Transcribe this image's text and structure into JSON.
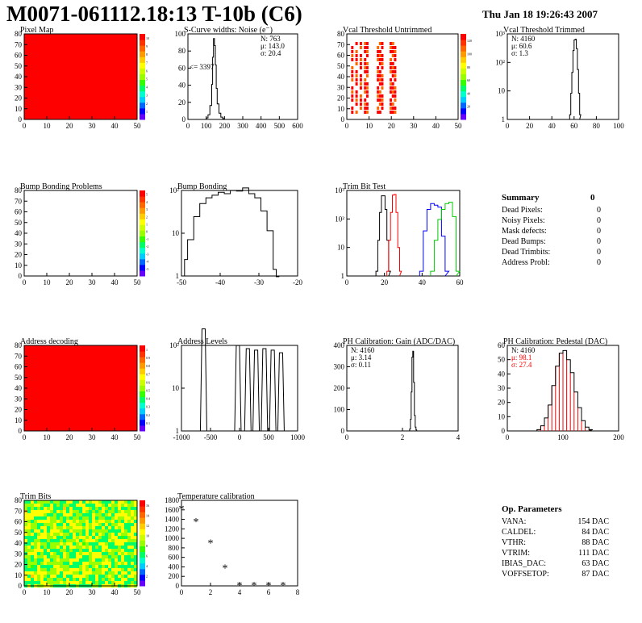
{
  "header": {
    "title": "M0071-061112.18:13 T-10b (C6)",
    "timestamp": "Thu Jan 18 19:26:43 2007"
  },
  "chart_data": [
    {
      "id": "pixel-map",
      "type": "heatmap",
      "title": "Pixel Map",
      "x_ticks": [
        "0",
        "10",
        "20",
        "30",
        "40",
        "50"
      ],
      "y_ticks": [
        "0",
        "10",
        "20",
        "30",
        "40",
        "50",
        "60",
        "70",
        "80"
      ],
      "fill": "#ff0000",
      "palette_ticks": [
        "1",
        "2",
        "3",
        "4",
        "5",
        "6",
        "7",
        "8",
        "9",
        "10"
      ]
    },
    {
      "id": "scurve-noise",
      "type": "line",
      "title": "S-Curve widths: Noise (e⁻)",
      "x_ticks": [
        "0",
        "100",
        "200",
        "300",
        "400",
        "500",
        "600"
      ],
      "y_ticks": [
        "0",
        "20",
        "40",
        "60",
        "80",
        "100"
      ],
      "xlim": [
        0,
        600
      ],
      "ylim": [
        0,
        110
      ],
      "stats": [
        "N:  763",
        "μ:  143.0",
        "σ:  20.4"
      ],
      "annotation": "<= 3397",
      "x": [
        90,
        100,
        110,
        120,
        130,
        135,
        140,
        145,
        150,
        155,
        160,
        170,
        180,
        190,
        200
      ],
      "y": [
        0,
        2,
        6,
        18,
        45,
        80,
        104,
        95,
        70,
        40,
        20,
        8,
        3,
        1,
        0
      ]
    },
    {
      "id": "vcal-untrimmed",
      "type": "heatmap",
      "title": "Vcal Threshold Untrimmed",
      "x_ticks": [
        "0",
        "10",
        "20",
        "30",
        "40",
        "50"
      ],
      "y_ticks": [
        "0",
        "10",
        "20",
        "30",
        "40",
        "50",
        "60",
        "70",
        "80"
      ],
      "palette_ticks": [
        "20",
        "40",
        "60",
        "80",
        "100",
        "120"
      ],
      "columns": [
        2,
        4,
        6,
        8,
        9,
        14,
        15,
        16,
        20,
        21,
        22
      ]
    },
    {
      "id": "vcal-trimmed",
      "type": "line",
      "title": "Vcal Threshold Trimmed",
      "x_ticks": [
        "0",
        "20",
        "40",
        "60",
        "80",
        "100"
      ],
      "y_ticks": [
        "1",
        "10",
        "10²",
        "10³"
      ],
      "xlim": [
        0,
        100
      ],
      "log_y": true,
      "stats": [
        "N:  4160",
        "μ:  60.6",
        "σ:   1.3"
      ],
      "x": [
        56,
        57,
        58,
        59,
        60,
        61,
        62,
        63,
        64,
        65
      ],
      "y": [
        1,
        8,
        60,
        500,
        1400,
        1500,
        600,
        80,
        8,
        1
      ]
    },
    {
      "id": "bump-bonding-problems",
      "type": "heatmap",
      "title": "Bump Bonding Problems",
      "x_ticks": [
        "0",
        "10",
        "20",
        "30",
        "40",
        "50"
      ],
      "y_ticks": [
        "0",
        "10",
        "20",
        "30",
        "40",
        "50",
        "60",
        "70",
        "80"
      ],
      "palette_ticks": [
        "-5",
        "-4",
        "-3",
        "-2",
        "-1",
        "0",
        "1",
        "2",
        "3",
        "4",
        "5"
      ]
    },
    {
      "id": "bump-bonding",
      "type": "line",
      "title": "Bump Bonding",
      "x_ticks": [
        "-50",
        "-40",
        "-30",
        "-20"
      ],
      "y_ticks": [
        "1",
        "10",
        "10²"
      ],
      "xlim": [
        -50,
        -12
      ],
      "log_y": true,
      "x": [
        -49,
        -48,
        -46,
        -44,
        -42,
        -40,
        -38,
        -36,
        -34,
        -32,
        -30,
        -28,
        -26,
        -24,
        -22,
        -20,
        -19
      ],
      "y": [
        2,
        8,
        40,
        100,
        150,
        180,
        220,
        200,
        250,
        240,
        300,
        200,
        150,
        60,
        15,
        1,
        0.6
      ]
    },
    {
      "id": "trim-bit-test",
      "type": "line",
      "title": "Trim Bit Test",
      "x_ticks": [
        "0",
        "20",
        "40",
        "60"
      ],
      "y_ticks": [
        "1",
        "10",
        "10²",
        "10³"
      ],
      "xlim": [
        0,
        62
      ],
      "log_y": true,
      "series": [
        {
          "color": "#000000",
          "x": [
            16,
            17,
            18,
            19,
            20,
            21,
            22,
            23
          ],
          "y": [
            1,
            20,
            300,
            1500,
            1500,
            400,
            20,
            1
          ]
        },
        {
          "color": "#ff0000",
          "x": [
            22,
            23,
            24,
            25,
            26,
            27,
            28,
            29
          ],
          "y": [
            1,
            20,
            300,
            1600,
            1700,
            300,
            10,
            1
          ]
        },
        {
          "color": "#0000ff",
          "x": [
            40,
            42,
            44,
            46,
            48,
            50,
            52,
            54
          ],
          "y": [
            1,
            50,
            400,
            700,
            600,
            500,
            30,
            1
          ]
        },
        {
          "color": "#00cc00",
          "x": [
            46,
            48,
            50,
            52,
            54,
            56,
            58,
            60
          ],
          "y": [
            1,
            20,
            150,
            400,
            700,
            800,
            200,
            1
          ]
        }
      ]
    },
    {
      "id": "address-decoding",
      "type": "heatmap",
      "title": "Address decoding",
      "x_ticks": [
        "0",
        "10",
        "20",
        "30",
        "40",
        "50"
      ],
      "y_ticks": [
        "0",
        "10",
        "20",
        "30",
        "40",
        "50",
        "60",
        "70",
        "80"
      ],
      "fill": "#ff0000",
      "palette_ticks": [
        "0.1",
        "0.2",
        "0.3",
        "0.4",
        "0.5",
        "0.6",
        "0.7",
        "0.8",
        "0.9",
        "1"
      ]
    },
    {
      "id": "address-levels",
      "type": "line",
      "title": "Address Levels",
      "x_ticks": [
        "-1000",
        "-500",
        "0",
        "500",
        "1000"
      ],
      "y_ticks": [
        "1",
        "10",
        "10²"
      ],
      "xlim": [
        -1100,
        1000
      ],
      "log_y": true,
      "peaks": [
        -700,
        -80,
        100,
        250,
        400,
        550,
        700
      ],
      "peak_heights": [
        800,
        250,
        200,
        180,
        200,
        180,
        150
      ]
    },
    {
      "id": "ph-gain",
      "type": "line",
      "title": "PH Calibration: Gain (ADC/DAC)",
      "x_ticks": [
        "0",
        "2",
        "4"
      ],
      "y_ticks": [
        "0",
        "100",
        "200",
        "300",
        "400"
      ],
      "xlim": [
        -1,
        6
      ],
      "ylim": [
        0,
        440
      ],
      "stats": [
        "N:  4160",
        "μ:  3.14",
        "σ:  0.11"
      ],
      "x": [
        2.9,
        2.95,
        3.0,
        3.05,
        3.1,
        3.15,
        3.2,
        3.25,
        3.3,
        3.35,
        3.4
      ],
      "y": [
        0,
        10,
        60,
        200,
        380,
        410,
        250,
        80,
        20,
        5,
        0
      ]
    },
    {
      "id": "ph-pedestal",
      "type": "line",
      "title": "PH Calibration: Pedestal (DAC)",
      "x_ticks": [
        "0",
        "100",
        "200"
      ],
      "y_ticks": [
        "0",
        "10",
        "20",
        "30",
        "40",
        "50",
        "60"
      ],
      "xlim": [
        -50,
        250
      ],
      "ylim": [
        0,
        66
      ],
      "stats": [
        "N:  4160",
        "μ:  98.1",
        "σ:  27.4"
      ],
      "stats_colors": [
        "#000000",
        "#ff0000",
        "#ff0000"
      ],
      "x": [
        30,
        40,
        50,
        60,
        70,
        80,
        90,
        100,
        110,
        120,
        130,
        140,
        150,
        160,
        170
      ],
      "y": [
        1,
        4,
        10,
        20,
        35,
        50,
        60,
        62,
        55,
        45,
        30,
        18,
        8,
        3,
        1
      ]
    },
    {
      "id": "trim-bits",
      "type": "heatmap",
      "title": "Trim Bits",
      "x_ticks": [
        "0",
        "10",
        "20",
        "30",
        "40",
        "50"
      ],
      "y_ticks": [
        "0",
        "10",
        "20",
        "30",
        "40",
        "50",
        "60",
        "70",
        "80"
      ],
      "palette_ticks": [
        "2",
        "4",
        "6",
        "8",
        "10",
        "12",
        "14",
        "16"
      ]
    },
    {
      "id": "temperature-calibration",
      "type": "scatter",
      "title": "Temperature calibration",
      "x_ticks": [
        "0",
        "2",
        "4",
        "6",
        "8"
      ],
      "y_ticks": [
        "0",
        "200",
        "400",
        "600",
        "800",
        "1000",
        "1200",
        "1400",
        "1600",
        "1800"
      ],
      "xlim": [
        0,
        8
      ],
      "ylim": [
        0,
        1900
      ],
      "x": [
        0,
        1,
        2,
        3,
        4,
        5,
        6,
        7
      ],
      "y": [
        1720,
        1430,
        960,
        400,
        20,
        20,
        20,
        20
      ]
    }
  ],
  "summary": {
    "heading": "Summary",
    "heading_value": "0",
    "rows": [
      {
        "label": "Dead Pixels:",
        "value": "0"
      },
      {
        "label": "Noisy Pixels:",
        "value": "0"
      },
      {
        "label": "Mask defects:",
        "value": "0"
      },
      {
        "label": "Dead Bumps:",
        "value": "0"
      },
      {
        "label": "Dead Trimbits:",
        "value": "0"
      },
      {
        "label": "Address Probl:",
        "value": "0"
      }
    ]
  },
  "op_params": {
    "heading": "Op. Parameters",
    "rows": [
      {
        "label": "VANA:",
        "value": "154 DAC"
      },
      {
        "label": "CALDEL:",
        "value": "84 DAC"
      },
      {
        "label": "VTHR:",
        "value": "88 DAC"
      },
      {
        "label": "VTRIM:",
        "value": "111 DAC"
      },
      {
        "label": "IBIAS_DAC:",
        "value": "63 DAC"
      },
      {
        "label": "VOFFSETOP:",
        "value": "87 DAC"
      }
    ]
  }
}
